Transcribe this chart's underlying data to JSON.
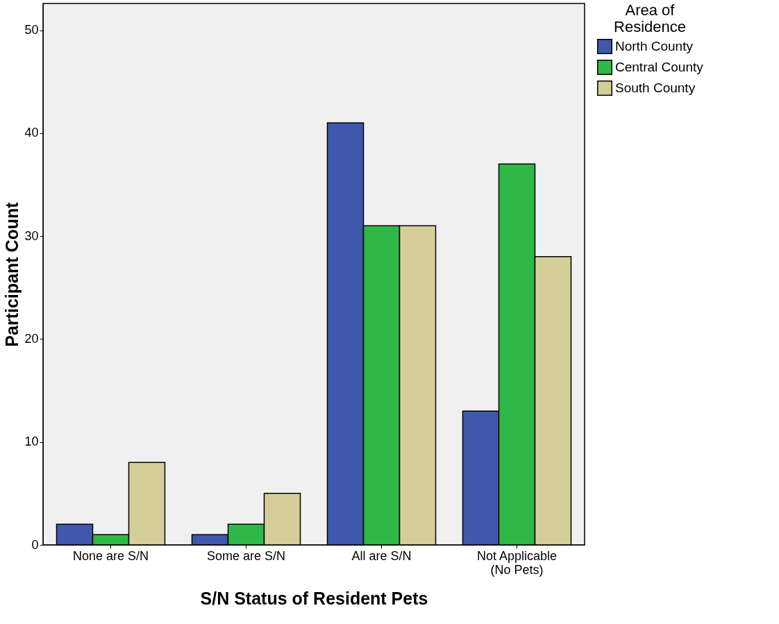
{
  "chart_data": {
    "type": "bar",
    "xlabel": "S/N Status of Resident Pets",
    "ylabel": "Participant Count",
    "legend_title": "Area of\nResidence",
    "categories": [
      "None are S/N",
      "Some are S/N",
      "All are S/N",
      "Not Applicable\n(No Pets)"
    ],
    "series": [
      {
        "name": "North County",
        "color": "#3f58ad",
        "values": [
          2,
          1,
          41,
          13
        ]
      },
      {
        "name": "Central County",
        "color": "#2fb848",
        "values": [
          1,
          2,
          31,
          37
        ]
      },
      {
        "name": "South County",
        "color": "#d4ce98",
        "values": [
          8,
          5,
          31,
          28
        ]
      }
    ],
    "ylim": [
      0,
      52.6
    ],
    "yticks": [
      0,
      10,
      20,
      30,
      40,
      50
    ],
    "grid": false,
    "legend": "top right"
  }
}
